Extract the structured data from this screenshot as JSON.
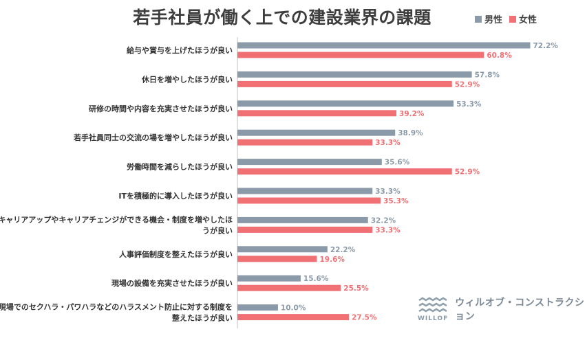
{
  "colors": {
    "male": "#8b9aa8",
    "female": "#f07073",
    "axis": "#bfbfbf"
  },
  "legend": {
    "male": "男性",
    "female": "女性"
  },
  "brand": {
    "name": "ウィルオブ・コンストラクション",
    "mark_text": "WILLOF"
  },
  "chart_data": {
    "type": "bar",
    "orientation": "horizontal",
    "title": "若手社員が働く上での建設業界の課題",
    "xlim": [
      0,
      75
    ],
    "legend_placement": "top-right",
    "grid": false,
    "categories": [
      [
        "給与や賞与を上げたほうが良い"
      ],
      [
        "休日を増やしたほうが良い"
      ],
      [
        "研修の時間や内容を充実させたほうが良い"
      ],
      [
        "若手社員同士の交流の場を増やしたほうが良い"
      ],
      [
        "労働時間を減らしたほうが良い"
      ],
      [
        "ITを積極的に導入したほうが良い"
      ],
      [
        "キャリアアップやキャリアチェンジができる機会・制度を増やしたほ",
        "うが良い"
      ],
      [
        "人事評価制度を整えたほうが良い"
      ],
      [
        "現場の設備を充実させたほうが良い"
      ],
      [
        "現場でのセクハラ・パワハラなどのハラスメント防止に対する制度を",
        "整えたほうが良い"
      ]
    ],
    "series": [
      {
        "name": "男性",
        "values": [
          72.2,
          57.8,
          53.3,
          38.9,
          35.6,
          33.3,
          32.2,
          22.2,
          15.6,
          10.0
        ],
        "labels": [
          "72.2%",
          "57.8%",
          "53.3%",
          "38.9%",
          "35.6%",
          "33.3%",
          "32.2%",
          "22.2%",
          "15.6%",
          "10.0%"
        ]
      },
      {
        "name": "女性",
        "values": [
          60.8,
          52.9,
          39.2,
          33.3,
          52.9,
          35.3,
          33.3,
          19.6,
          25.5,
          27.5
        ],
        "labels": [
          "60.8%",
          "52.9%",
          "39.2%",
          "33.3%",
          "52.9%",
          "35.3%",
          "33.3%",
          "19.6%",
          "25.5%",
          "27.5%"
        ]
      }
    ],
    "highlight_index": 2
  }
}
